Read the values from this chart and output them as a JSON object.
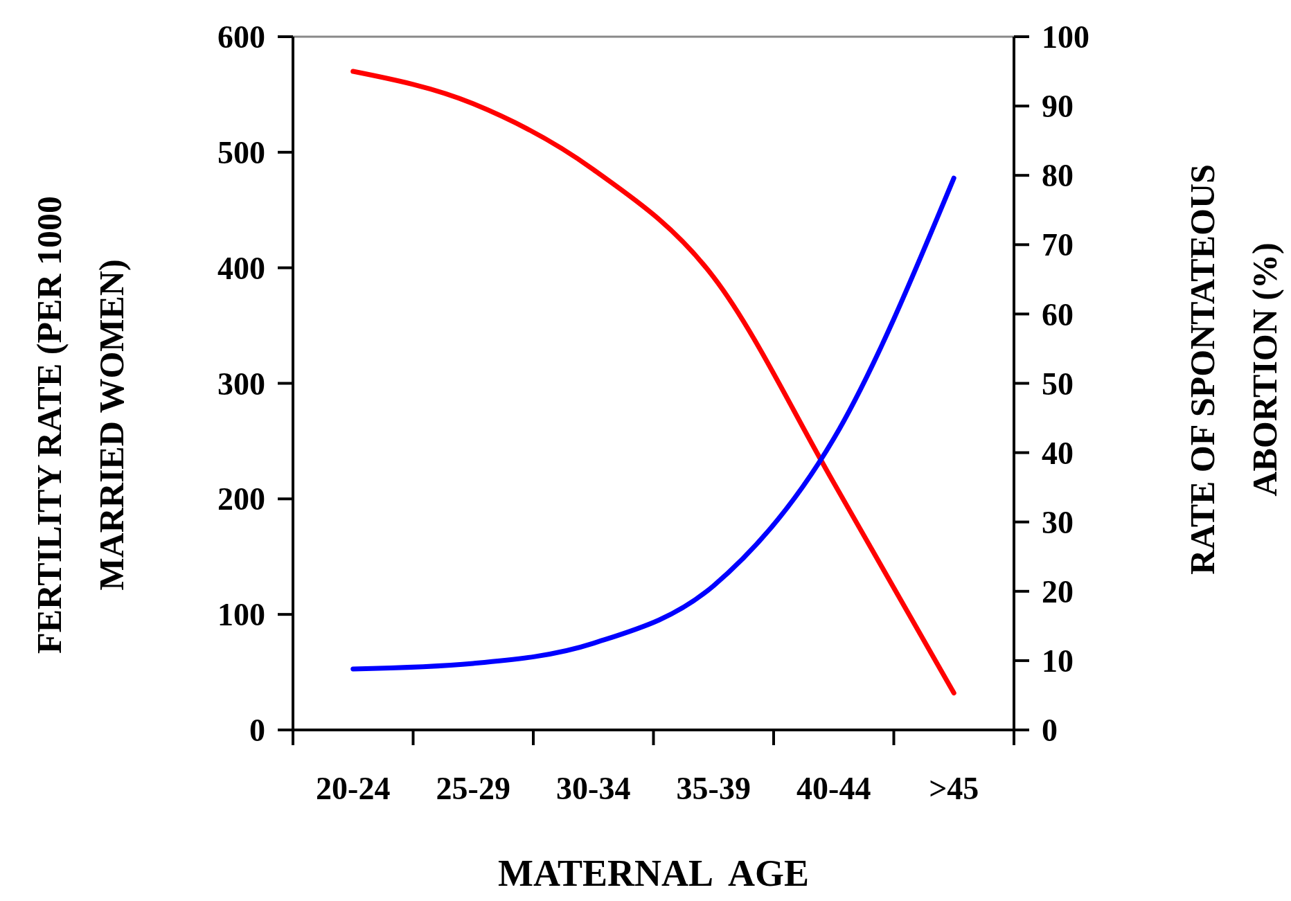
{
  "chart_data": {
    "type": "line",
    "xlabel": "MATERNAL  AGE",
    "ylabel": "FERTILITY RATE (PER 1000 MARRIED WOMEN)",
    "y2label": "RATE OF SPONTATEOUS ABORTION (%)",
    "categories": [
      "20-24",
      "25-29",
      "30-34",
      "35-39",
      "40-44",
      ">45"
    ],
    "series": [
      {
        "color": "#ff0000",
        "values": [
          570,
          542,
          485,
          392,
          214,
          32
        ]
      },
      {
        "color": "#0000ff",
        "axis": "y2",
        "values": [
          8.8,
          9.6,
          12.5,
          20.8,
          42,
          79.6
        ]
      }
    ],
    "ylim": [
      0,
      600
    ],
    "yticks": [
      0,
      100,
      200,
      300,
      400,
      500,
      600
    ],
    "y2lim": [
      0,
      100
    ],
    "y2ticks": [
      0,
      10,
      20,
      30,
      40,
      50,
      60,
      70,
      80,
      90,
      100
    ],
    "grid": false,
    "marker": "none",
    "line_style": "solid"
  }
}
